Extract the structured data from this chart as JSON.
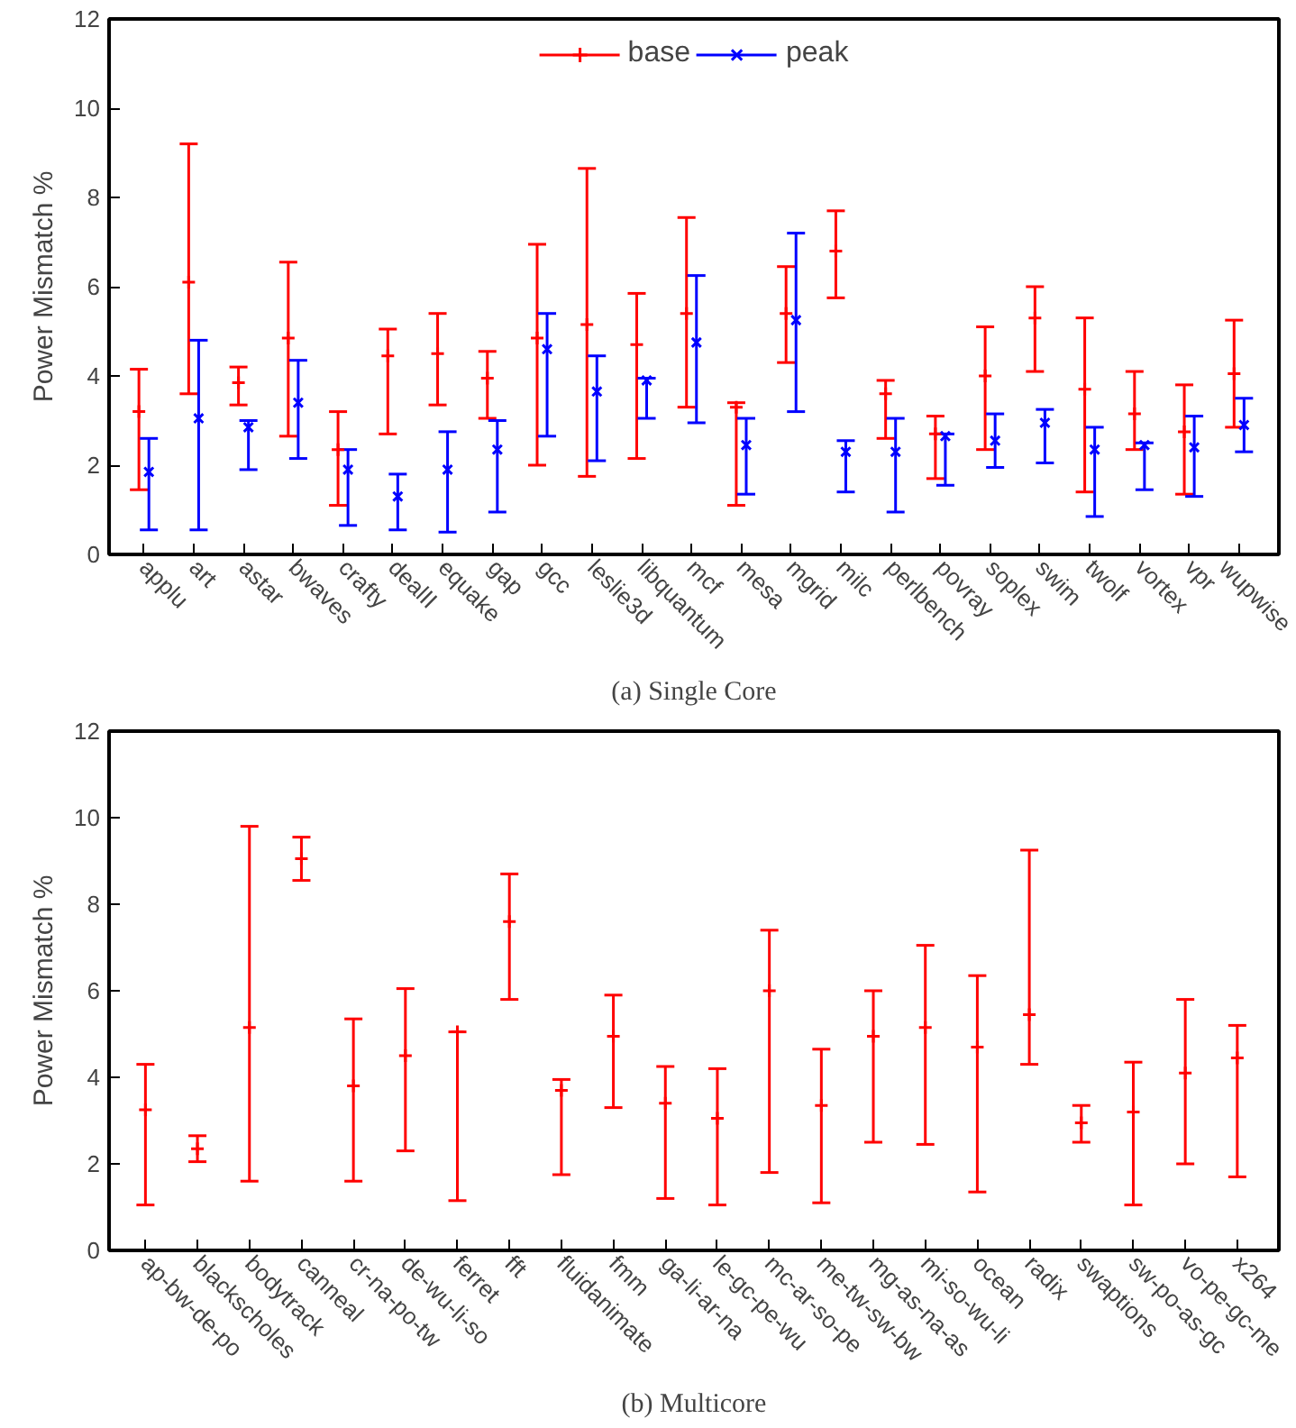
{
  "chart_data": [
    {
      "type": "scatter",
      "xlabel": "(a) Single Core",
      "ylabel": "Power Mismatch %",
      "categories": [
        "applu",
        "art",
        "astar",
        "bwaves",
        "crafty",
        "dealII",
        "equake",
        "gap",
        "gcc",
        "leslie3d",
        "libquantum",
        "mcf",
        "mesa",
        "mgrid",
        "milc",
        "perlbench",
        "povray",
        "soplex",
        "swim",
        "twolf",
        "vortex",
        "vpr",
        "wupwise"
      ],
      "ylim": [
        0,
        12
      ],
      "yticks": [
        0,
        2,
        4,
        6,
        8,
        10,
        12
      ],
      "grid": false,
      "legend": "top",
      "series": [
        {
          "name": "base",
          "color": "#ff0000",
          "marker": "cross",
          "values": [
            3.2,
            6.1,
            3.85,
            4.85,
            2.35,
            4.45,
            4.5,
            3.95,
            4.85,
            5.15,
            4.7,
            5.4,
            3.3,
            5.4,
            6.8,
            3.6,
            2.7,
            4.0,
            5.3,
            3.7,
            3.15,
            2.75,
            4.05
          ],
          "errors": [
            [
              1.45,
              4.15
            ],
            [
              3.6,
              9.2
            ],
            [
              3.35,
              4.2
            ],
            [
              2.65,
              6.55
            ],
            [
              1.1,
              3.2
            ],
            [
              2.7,
              5.05
            ],
            [
              3.35,
              5.4
            ],
            [
              3.05,
              4.55
            ],
            [
              2.0,
              6.95
            ],
            [
              1.75,
              8.65
            ],
            [
              2.15,
              5.85
            ],
            [
              3.3,
              7.55
            ],
            [
              1.1,
              3.4
            ],
            [
              4.3,
              6.45
            ],
            [
              5.75,
              7.7
            ],
            [
              2.6,
              3.9
            ],
            [
              1.7,
              3.1
            ],
            [
              2.35,
              5.1
            ],
            [
              4.1,
              6.0
            ],
            [
              1.4,
              5.3
            ],
            [
              2.35,
              4.1
            ],
            [
              1.35,
              3.8
            ],
            [
              2.85,
              5.25
            ]
          ]
        },
        {
          "name": "peak",
          "color": "#0000ff",
          "marker": "x",
          "values": [
            1.85,
            3.05,
            2.85,
            3.4,
            1.9,
            1.3,
            1.9,
            2.35,
            4.6,
            3.65,
            3.9,
            4.75,
            2.45,
            5.25,
            2.3,
            2.3,
            2.65,
            2.55,
            2.95,
            2.35,
            2.45,
            2.4,
            2.9
          ],
          "errors": [
            [
              0.55,
              2.6
            ],
            [
              0.55,
              4.8
            ],
            [
              1.9,
              3.0
            ],
            [
              2.15,
              4.35
            ],
            [
              0.65,
              2.35
            ],
            [
              0.55,
              1.8
            ],
            [
              0.5,
              2.75
            ],
            [
              0.95,
              3.0
            ],
            [
              2.65,
              5.4
            ],
            [
              2.1,
              4.45
            ],
            [
              3.05,
              3.95
            ],
            [
              2.95,
              6.25
            ],
            [
              1.35,
              3.05
            ],
            [
              3.2,
              7.2
            ],
            [
              1.4,
              2.55
            ],
            [
              0.95,
              3.05
            ],
            [
              1.55,
              2.7
            ],
            [
              1.95,
              3.15
            ],
            [
              2.05,
              3.25
            ],
            [
              0.85,
              2.85
            ],
            [
              1.45,
              2.5
            ],
            [
              1.3,
              3.1
            ],
            [
              2.3,
              3.5
            ]
          ]
        }
      ]
    },
    {
      "type": "scatter",
      "xlabel": "(b) Multicore",
      "ylabel": "Power Mismatch %",
      "categories": [
        "ap-bw-de-po",
        "blackscholes",
        "bodytrack",
        "canneal",
        "cr-na-po-tw",
        "de-wu-li-so",
        "ferret",
        "fft",
        "fluidanimate",
        "fmm",
        "ga-li-ar-na",
        "le-gc-pe-wu",
        "mc-ar-so-pe",
        "me-tw-sw-bw",
        "mg-as-na-as",
        "mi-so-wu-li",
        "ocean",
        "radix",
        "swaptions",
        "sw-po-as-gc",
        "vo-pe-gc-me",
        "x264"
      ],
      "ylim": [
        0,
        12
      ],
      "yticks": [
        0,
        2,
        4,
        6,
        8,
        10,
        12
      ],
      "grid": false,
      "series": [
        {
          "color": "#ff0000",
          "marker": "cross",
          "values": [
            3.25,
            2.35,
            5.15,
            9.05,
            3.8,
            4.5,
            5.05,
            7.6,
            3.7,
            4.95,
            3.4,
            3.05,
            6.0,
            3.35,
            4.95,
            5.15,
            4.7,
            5.45,
            2.95,
            3.2,
            4.1,
            4.45
          ],
          "errors": [
            [
              1.05,
              4.3
            ],
            [
              2.05,
              2.65
            ],
            [
              1.6,
              9.8
            ],
            [
              8.55,
              9.55
            ],
            [
              1.6,
              5.35
            ],
            [
              2.3,
              6.05
            ],
            [
              1.15,
              5.05
            ],
            [
              5.8,
              8.7
            ],
            [
              1.75,
              3.95
            ],
            [
              3.3,
              5.9
            ],
            [
              1.2,
              4.25
            ],
            [
              1.05,
              4.2
            ],
            [
              1.8,
              7.4
            ],
            [
              1.1,
              4.65
            ],
            [
              2.5,
              6.0
            ],
            [
              2.45,
              7.05
            ],
            [
              1.35,
              6.35
            ],
            [
              4.3,
              9.25
            ],
            [
              2.5,
              3.35
            ],
            [
              1.05,
              4.35
            ],
            [
              2.0,
              5.8
            ],
            [
              1.7,
              5.2
            ]
          ]
        }
      ]
    }
  ]
}
